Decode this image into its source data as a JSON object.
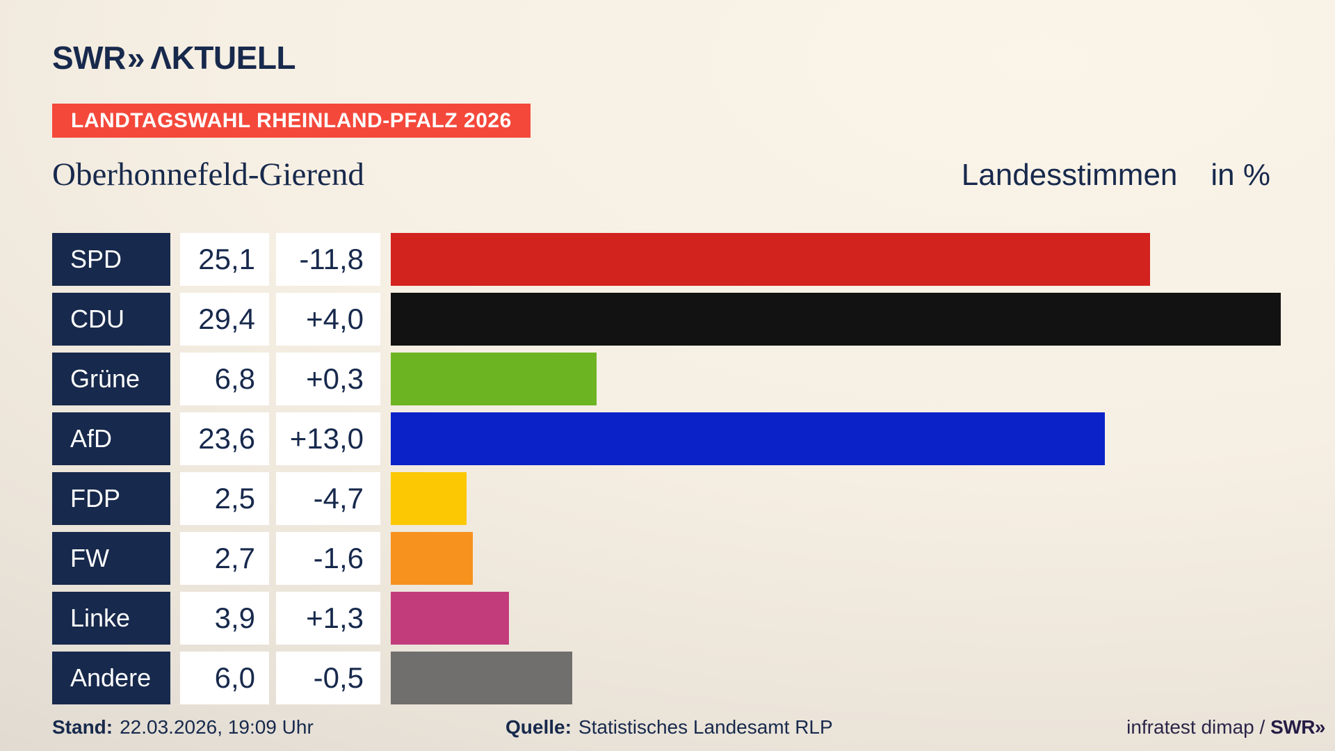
{
  "header": {
    "logo_brand": "SWR",
    "logo_chevrons": "»",
    "logo_name": "ΛKTUELL",
    "badge": "LANDTAGSWAHL RHEINLAND-PFALZ 2026",
    "region": "Oberhonnefeld-Gierend",
    "measure": "Landesstimmen",
    "unit": "in %"
  },
  "chart_data": {
    "type": "bar",
    "orientation": "horizontal",
    "title": "Landesstimmen in %",
    "categories": [
      "SPD",
      "CDU",
      "Grüne",
      "AfD",
      "FDP",
      "FW",
      "Linke",
      "Andere"
    ],
    "series": [
      {
        "name": "value",
        "values": [
          25.1,
          29.4,
          6.8,
          23.6,
          2.5,
          2.7,
          3.9,
          6.0
        ]
      },
      {
        "name": "change",
        "values": [
          -11.8,
          4.0,
          0.3,
          13.0,
          -4.7,
          -1.6,
          1.3,
          -0.5
        ]
      }
    ],
    "xlim": [
      0,
      31.2
    ],
    "grid": false,
    "legend": false,
    "bar_colors": [
      "#d2231f",
      "#121212",
      "#6db423",
      "#0b22c8",
      "#fcc803",
      "#f7921e",
      "#c23c7c",
      "#706f6e"
    ]
  },
  "rows": [
    {
      "party": "SPD",
      "value_label": "25,1",
      "change_label": "-11,8",
      "value": 25.1,
      "color": "#d2231f"
    },
    {
      "party": "CDU",
      "value_label": "29,4",
      "change_label": "+4,0",
      "value": 29.4,
      "color": "#121212"
    },
    {
      "party": "Grüne",
      "value_label": "6,8",
      "change_label": "+0,3",
      "value": 6.8,
      "color": "#6db423"
    },
    {
      "party": "AfD",
      "value_label": "23,6",
      "change_label": "+13,0",
      "value": 23.6,
      "color": "#0b22c8"
    },
    {
      "party": "FDP",
      "value_label": "2,5",
      "change_label": "-4,7",
      "value": 2.5,
      "color": "#fcc803"
    },
    {
      "party": "FW",
      "value_label": "2,7",
      "change_label": "-1,6",
      "value": 2.7,
      "color": "#f7921e"
    },
    {
      "party": "Linke",
      "value_label": "3,9",
      "change_label": "+1,3",
      "value": 3.9,
      "color": "#c23c7c"
    },
    {
      "party": "Andere",
      "value_label": "6,0",
      "change_label": "-0,5",
      "value": 6.0,
      "color": "#706f6e"
    }
  ],
  "footer": {
    "stand_label": "Stand:",
    "stand_value": "22.03.2026, 19:09 Uhr",
    "quelle_label": "Quelle:",
    "quelle_value": "Statistisches Landesamt RLP",
    "credit_text": "infratest dimap / ",
    "credit_brand": "SWR»"
  },
  "colors": {
    "accent_badge": "#f4483b",
    "navy": "#17294c",
    "background_light": "#faf4e9",
    "background_dark": "#d6d1ca",
    "cell_background": "#ffffff"
  }
}
